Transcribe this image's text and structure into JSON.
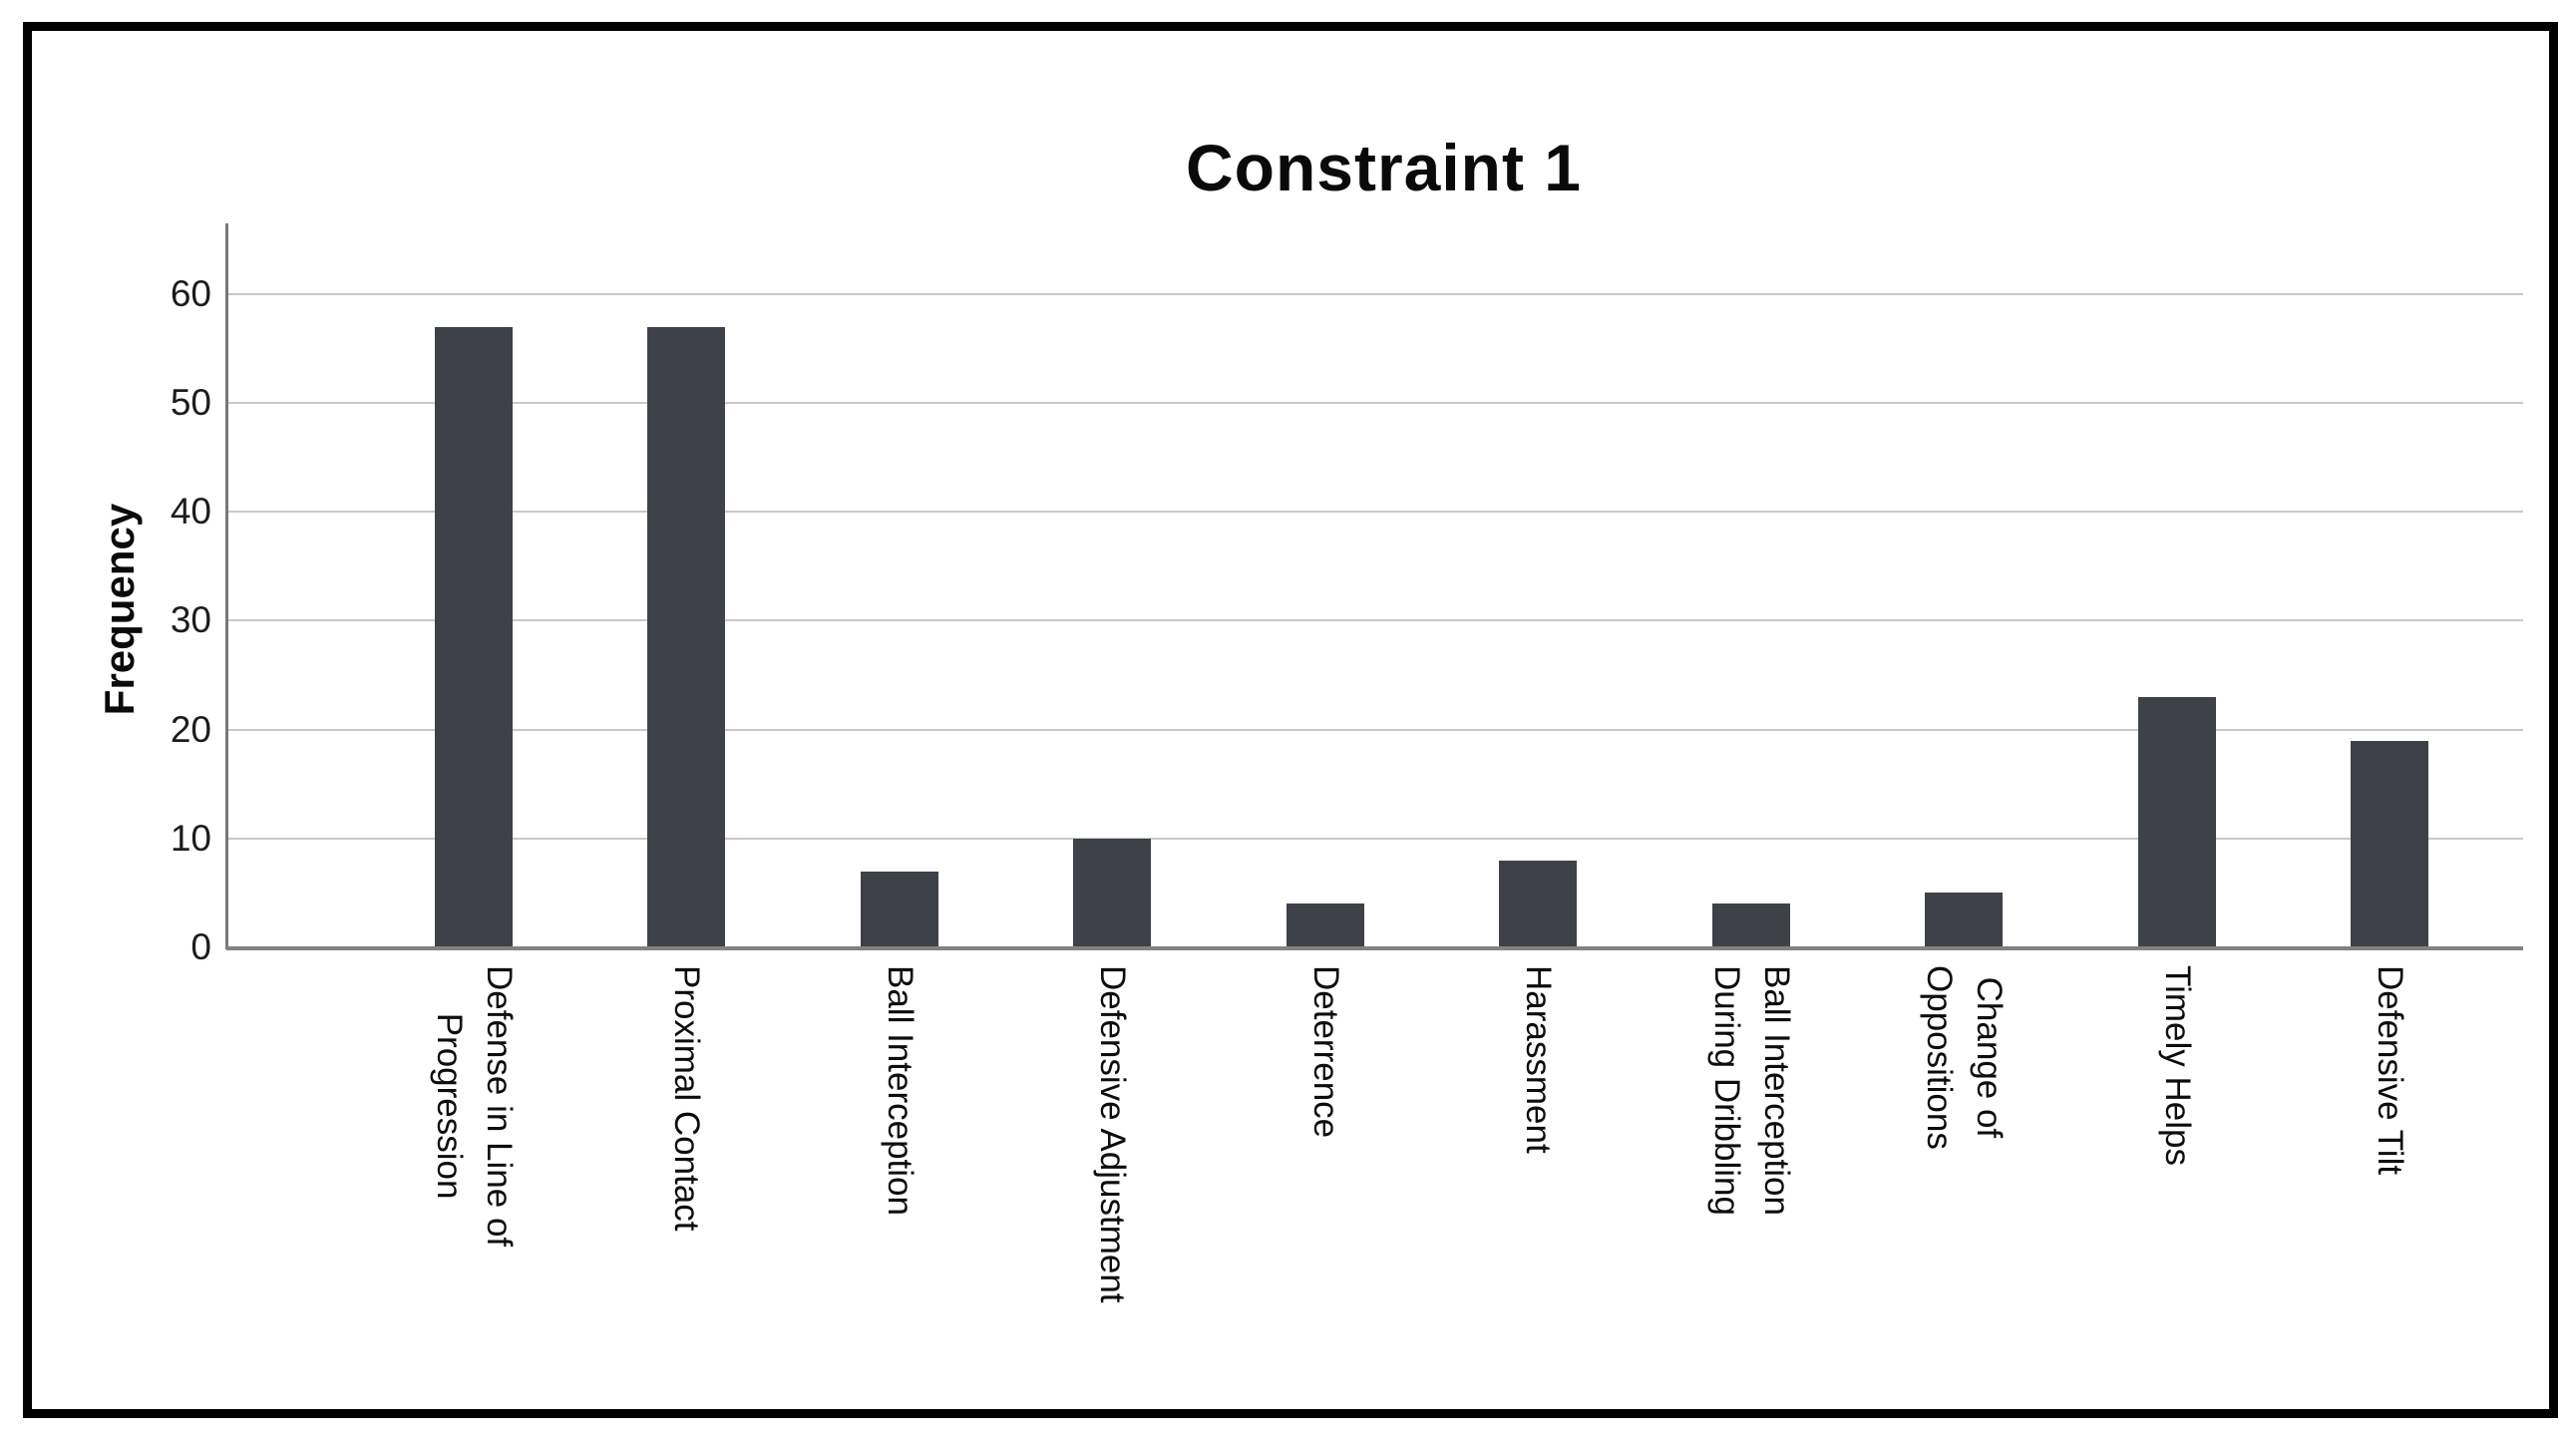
{
  "figure": {
    "title": "Constraint 1",
    "y_axis_title": "Frequency"
  },
  "chart_data": {
    "type": "bar",
    "title": "Constraint 1",
    "xlabel": "",
    "ylabel": "Frequency",
    "categories": [
      "Defense in Line of\nProgression",
      "Proximal Contact",
      "Ball Interception",
      "Defensive Adjustment",
      "Deterrence",
      "Harassment",
      "Ball Interception\nDuring Dribbling",
      "Change of\nOppositions",
      "Timely Helps",
      "Defensive Tilt"
    ],
    "values": [
      57,
      57,
      7,
      10,
      4,
      8,
      4,
      5,
      23,
      19
    ],
    "yticks": [
      0,
      10,
      20,
      30,
      40,
      50,
      60
    ],
    "ylim": [
      0,
      66
    ],
    "grid": "horizontal",
    "legend": false,
    "bar_color": "#3e4248",
    "gridline_color": "#c9c9c9",
    "axis_color": "#787878",
    "baseline_color": "#828282",
    "x_tick_rotation_degrees": 90
  }
}
